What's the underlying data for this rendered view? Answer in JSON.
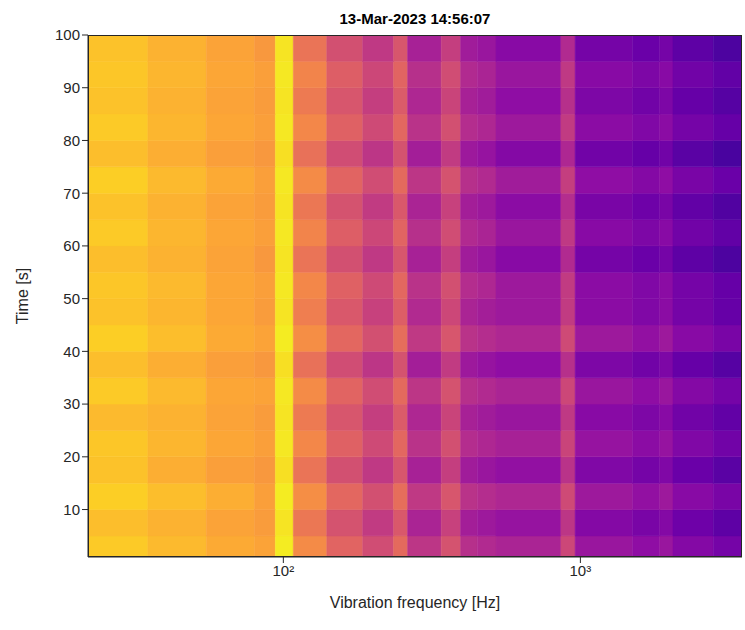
{
  "chart_data": {
    "type": "heatmap",
    "title": "13-Mar-2023 14:56:07",
    "xlabel": "Vibration frequency [Hz]",
    "ylabel": "Time [s]",
    "log": "x",
    "xlim": [
      22,
      3500
    ],
    "xticks": [
      {
        "value": 100,
        "label": "10²"
      },
      {
        "value": 1000,
        "label": "10³"
      }
    ],
    "ylim": [
      1,
      100
    ],
    "yticks": [
      10,
      20,
      30,
      40,
      50,
      60,
      70,
      80,
      90,
      100
    ],
    "x_edges": [
      22,
      35,
      55,
      80,
      94,
      108,
      140,
      185,
      235,
      262,
      340,
      395,
      450,
      520,
      860,
      960,
      1500,
      1850,
      2050,
      2800,
      3500
    ],
    "y_edges": [
      1,
      5,
      10,
      15,
      20,
      25,
      30,
      35,
      40,
      45,
      50,
      55,
      60,
      65,
      70,
      75,
      80,
      85,
      90,
      95,
      100
    ],
    "clim": [
      0,
      100
    ],
    "cells": [
      [
        89,
        85,
        81,
        79,
        97,
        72,
        60,
        52,
        62,
        44,
        54,
        42,
        40,
        38,
        50,
        33,
        30,
        33,
        27,
        23
      ],
      [
        86,
        83,
        79,
        77,
        95,
        66,
        54,
        46,
        56,
        38,
        48,
        36,
        34,
        32,
        44,
        27,
        24,
        27,
        21,
        17
      ],
      [
        90,
        86,
        82,
        78,
        97,
        73,
        61,
        53,
        63,
        45,
        55,
        43,
        41,
        39,
        51,
        34,
        31,
        34,
        28,
        24
      ],
      [
        87,
        82,
        78,
        76,
        94,
        65,
        53,
        45,
        55,
        37,
        47,
        35,
        33,
        31,
        43,
        26,
        23,
        26,
        20,
        16
      ],
      [
        88,
        84,
        80,
        78,
        96,
        71,
        59,
        51,
        61,
        43,
        53,
        41,
        39,
        37,
        49,
        32,
        29,
        32,
        26,
        22
      ],
      [
        85,
        83,
        79,
        77,
        95,
        67,
        55,
        47,
        57,
        39,
        49,
        37,
        35,
        33,
        45,
        28,
        25,
        28,
        22,
        18
      ],
      [
        89,
        85,
        80,
        79,
        96,
        72,
        60,
        52,
        62,
        44,
        54,
        42,
        40,
        38,
        50,
        33,
        30,
        33,
        27,
        23
      ],
      [
        86,
        82,
        78,
        76,
        94,
        64,
        52,
        44,
        54,
        36,
        46,
        34,
        32,
        30,
        42,
        25,
        22,
        25,
        19,
        15
      ],
      [
        90,
        86,
        81,
        79,
        97,
        73,
        61,
        53,
        63,
        45,
        55,
        43,
        41,
        39,
        51,
        34,
        31,
        34,
        28,
        24
      ],
      [
        87,
        84,
        80,
        77,
        95,
        68,
        56,
        48,
        58,
        40,
        50,
        38,
        36,
        34,
        46,
        29,
        26,
        29,
        23,
        19
      ],
      [
        88,
        85,
        80,
        78,
        96,
        71,
        59,
        51,
        61,
        43,
        53,
        41,
        39,
        34,
        46,
        29,
        26,
        29,
        23,
        19
      ],
      [
        86,
        83,
        79,
        76,
        95,
        65,
        53,
        45,
        55,
        37,
        47,
        35,
        33,
        28,
        40,
        23,
        20,
        23,
        17,
        13
      ],
      [
        89,
        84,
        80,
        78,
        96,
        70,
        58,
        50,
        60,
        42,
        52,
        40,
        38,
        33,
        45,
        28,
        25,
        28,
        22,
        18
      ],
      [
        87,
        83,
        79,
        77,
        95,
        66,
        54,
        46,
        56,
        38,
        48,
        36,
        34,
        29,
        41,
        24,
        21,
        24,
        18,
        14
      ],
      [
        90,
        85,
        81,
        78,
        96,
        72,
        60,
        52,
        62,
        44,
        54,
        42,
        40,
        35,
        47,
        30,
        27,
        30,
        24,
        20
      ],
      [
        86,
        82,
        78,
        76,
        94,
        64,
        52,
        44,
        54,
        36,
        46,
        34,
        32,
        27,
        39,
        22,
        19,
        22,
        16,
        12
      ],
      [
        89,
        84,
        80,
        78,
        96,
        71,
        59,
        51,
        61,
        43,
        53,
        41,
        39,
        34,
        46,
        29,
        26,
        29,
        23,
        19
      ],
      [
        87,
        83,
        79,
        77,
        95,
        67,
        55,
        47,
        57,
        39,
        49,
        37,
        35,
        30,
        42,
        25,
        22,
        25,
        19,
        15
      ],
      [
        88,
        84,
        80,
        78,
        96,
        70,
        58,
        50,
        60,
        42,
        52,
        40,
        38,
        33,
        45,
        28,
        25,
        28,
        22,
        18
      ],
      [
        87,
        83,
        79,
        76,
        95,
        65,
        53,
        45,
        55,
        37,
        47,
        35,
        33,
        28,
        40,
        23,
        20,
        23,
        17,
        13
      ]
    ]
  }
}
